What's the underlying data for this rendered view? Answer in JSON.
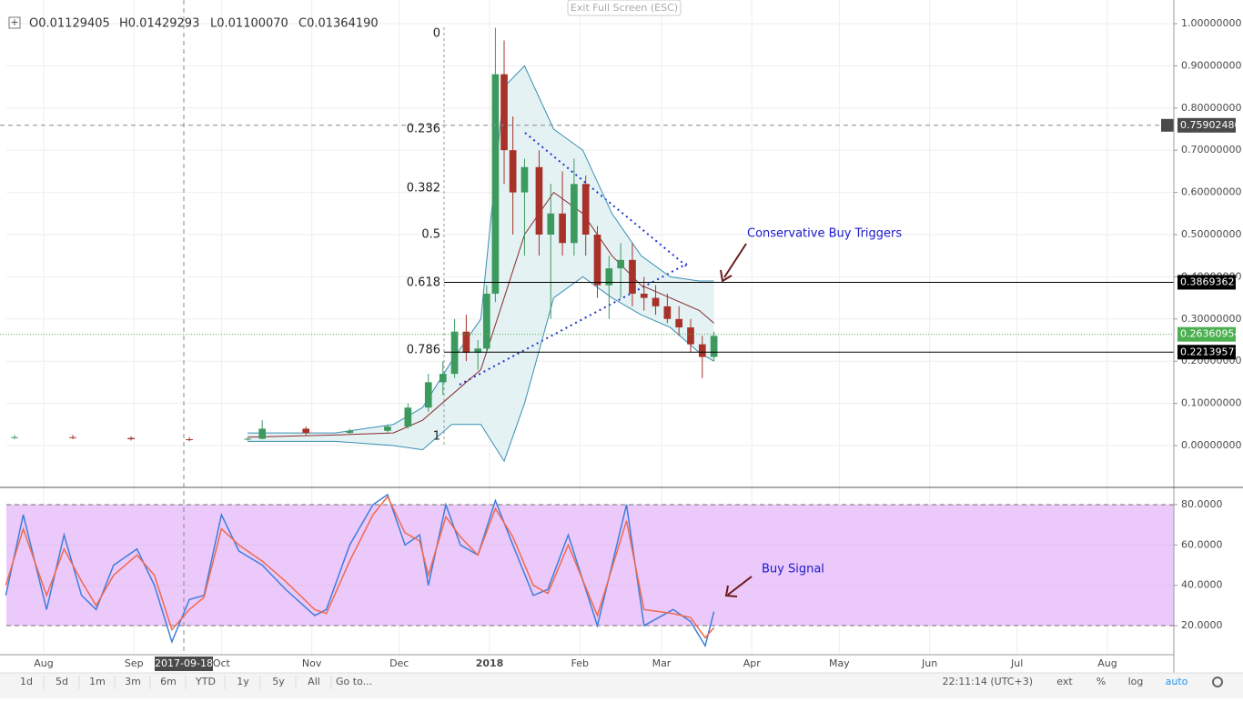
{
  "header": {
    "ohlc": [
      "O0.01129405",
      "H0.01429293",
      "L0.01100070",
      "C0.01364190"
    ],
    "exit": "Exit Full Screen (ESC)"
  },
  "chart_data": [
    {
      "type": "candlestick",
      "xlim": [
        -12.8,
        387.8
      ],
      "xticks": [
        {
          "value": 0,
          "label": "Aug"
        },
        {
          "value": 31,
          "label": "Sep"
        },
        {
          "value": 61,
          "label": "Oct"
        },
        {
          "value": 92,
          "label": "Nov"
        },
        {
          "value": 122,
          "label": "Dec"
        },
        {
          "value": 153,
          "label": "2018"
        },
        {
          "value": 184,
          "label": "Feb"
        },
        {
          "value": 212,
          "label": "Mar"
        },
        {
          "value": 243,
          "label": "Apr"
        },
        {
          "value": 273,
          "label": "May"
        },
        {
          "value": 304,
          "label": "Jun"
        },
        {
          "value": 334,
          "label": "Jul"
        },
        {
          "value": 365,
          "label": "Aug"
        }
      ],
      "ylim": [
        -0.097,
        1.056
      ],
      "yticks": [
        {
          "value": 0,
          "label": "0.00000000"
        },
        {
          "value": 0.1,
          "label": "0.10000000"
        },
        {
          "value": 0.2,
          "label": "0.20000000"
        },
        {
          "value": 0.3,
          "label": "0.30000000"
        },
        {
          "value": 0.4,
          "label": "0.40000000"
        },
        {
          "value": 0.5,
          "label": "0.50000000"
        },
        {
          "value": 0.6,
          "label": "0.60000000"
        },
        {
          "value": 0.7,
          "label": "0.70000000"
        },
        {
          "value": 0.8,
          "label": "0.80000000"
        },
        {
          "value": 0.9,
          "label": "0.90000000"
        },
        {
          "value": 1,
          "label": "1.00000000"
        }
      ],
      "candles": {
        "x": [
          -10,
          10,
          30,
          50,
          70,
          75,
          90,
          105,
          118,
          125,
          132,
          137,
          141,
          145,
          149,
          152,
          155,
          158,
          161,
          165,
          170,
          174,
          178,
          182,
          186,
          190,
          194,
          198,
          202,
          206,
          210,
          214,
          218,
          222,
          226,
          230
        ],
        "open": [
          0.02,
          0.02,
          0.018,
          0.015,
          0.014,
          0.016,
          0.04,
          0.03,
          0.035,
          0.045,
          0.09,
          0.15,
          0.17,
          0.27,
          0.22,
          0.23,
          0.36,
          0.88,
          0.7,
          0.6,
          0.66,
          0.5,
          0.55,
          0.48,
          0.62,
          0.5,
          0.38,
          0.42,
          0.44,
          0.36,
          0.35,
          0.33,
          0.3,
          0.28,
          0.24,
          0.21
        ],
        "high": [
          0.025,
          0.025,
          0.022,
          0.02,
          0.02,
          0.06,
          0.045,
          0.04,
          0.05,
          0.1,
          0.17,
          0.2,
          0.3,
          0.31,
          0.25,
          0.38,
          0.99,
          0.96,
          0.78,
          0.68,
          0.7,
          0.62,
          0.65,
          0.68,
          0.64,
          0.52,
          0.45,
          0.48,
          0.48,
          0.4,
          0.38,
          0.36,
          0.33,
          0.3,
          0.26,
          0.27
        ],
        "low": [
          0.015,
          0.015,
          0.012,
          0.01,
          0.012,
          0.015,
          0.025,
          0.025,
          0.03,
          0.04,
          0.08,
          0.12,
          0.16,
          0.2,
          0.18,
          0.22,
          0.34,
          0.62,
          0.5,
          0.45,
          0.45,
          0.3,
          0.45,
          0.45,
          0.45,
          0.35,
          0.3,
          0.35,
          0.33,
          0.32,
          0.31,
          0.29,
          0.26,
          0.22,
          0.16,
          0.2
        ],
        "close": [
          0.02,
          0.018,
          0.015,
          0.014,
          0.016,
          0.04,
          0.03,
          0.035,
          0.045,
          0.09,
          0.15,
          0.17,
          0.27,
          0.22,
          0.23,
          0.36,
          0.88,
          0.7,
          0.6,
          0.66,
          0.5,
          0.55,
          0.48,
          0.62,
          0.5,
          0.38,
          0.42,
          0.44,
          0.36,
          0.35,
          0.33,
          0.3,
          0.28,
          0.24,
          0.21,
          0.26
        ]
      },
      "up_color": "#3d9a5f",
      "down_color": "#a8322a",
      "bands": {
        "x": [
          70,
          100,
          120,
          130,
          140,
          150,
          158,
          165,
          175,
          185,
          195,
          205,
          215,
          225,
          230
        ],
        "upper": [
          0.03,
          0.03,
          0.05,
          0.09,
          0.2,
          0.3,
          0.85,
          0.9,
          0.75,
          0.7,
          0.55,
          0.45,
          0.4,
          0.39,
          0.39
        ],
        "basis": [
          0.02,
          0.025,
          0.03,
          0.06,
          0.12,
          0.18,
          0.35,
          0.5,
          0.6,
          0.55,
          0.45,
          0.38,
          0.35,
          0.32,
          0.29
        ],
        "lower": [
          0.01,
          0.01,
          0,
          -0.01,
          0.05,
          0.05,
          -0.037,
          0.1,
          0.35,
          0.4,
          0.35,
          0.31,
          0.28,
          0.22,
          0.2
        ],
        "color": "#3a8fb0",
        "fill": "#e4f2f4",
        "basis_color": "#8b2b2b"
      },
      "fib_levels": [
        0,
        0.236,
        0.382,
        0.5,
        0.618,
        0.786,
        1
      ],
      "price_lines": [
        {
          "value": 0.75902486,
          "color": "#4a4a4a"
        },
        {
          "value": 0.38693621,
          "color": "#000000"
        },
        {
          "value": 0.26360954,
          "color": "#4caf50"
        },
        {
          "value": 0.22139571,
          "color": "#000000"
        }
      ],
      "crosshair_date": "2017-09-18",
      "annotation": "Conservative Buy Triggers"
    },
    {
      "type": "stochastic",
      "ylim": [
        5.6,
        88.1
      ],
      "yticks": [
        {
          "value": 20,
          "label": "20.0000"
        },
        {
          "value": 40,
          "label": "40.0000"
        },
        {
          "value": 60,
          "label": "60.0000"
        },
        {
          "value": 80,
          "label": "80.0000"
        }
      ],
      "band": [
        20,
        80
      ],
      "band_color": "#ecc9fb",
      "x": [
        -13,
        -7,
        1,
        7,
        13,
        18,
        24,
        32,
        38,
        44,
        50,
        55,
        61,
        67,
        75,
        83,
        93,
        97,
        105,
        113,
        118,
        124,
        129,
        132,
        138,
        143,
        149,
        155,
        161,
        168,
        173,
        180,
        190,
        200,
        206,
        216,
        222,
        227,
        230
      ],
      "series": [
        {
          "color": "#3d7edb",
          "values": [
            35,
            75,
            28,
            65,
            35,
            28,
            50,
            58,
            40,
            12,
            33,
            35,
            75,
            57,
            50,
            38,
            25,
            28,
            60,
            80,
            85,
            60,
            65,
            40,
            80,
            60,
            55,
            82,
            60,
            35,
            38,
            65,
            20,
            80,
            20,
            28,
            22,
            10,
            27
          ]
        },
        {
          "color": "#f06a4a",
          "values": [
            40,
            68,
            35,
            58,
            42,
            30,
            45,
            55,
            45,
            18,
            28,
            34,
            68,
            60,
            52,
            42,
            28,
            26,
            52,
            75,
            84,
            66,
            62,
            45,
            74,
            64,
            55,
            78,
            64,
            40,
            36,
            60,
            25,
            72,
            28,
            26,
            24,
            14,
            19
          ]
        }
      ],
      "annotation": "Buy Signal"
    }
  ],
  "toolbar": {
    "ranges": [
      "1d",
      "5d",
      "1m",
      "3m",
      "6m",
      "YTD",
      "1y",
      "5y",
      "All"
    ],
    "goto": "Go to...",
    "clock": "22:11:14 (UTC+3)",
    "options": [
      "ext",
      "%",
      "log",
      "auto"
    ]
  }
}
